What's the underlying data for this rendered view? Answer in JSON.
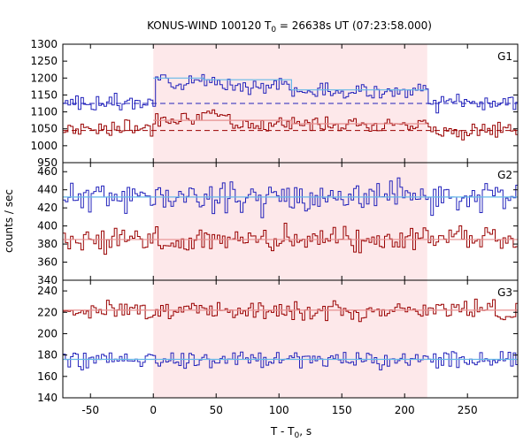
{
  "chart_data": {
    "type": "line",
    "title": "KONUS-WIND 100120 T",
    "title_sub": "0",
    "title_rest": " = 26638s UT (07:23:58.000)",
    "xlabel": "T - T",
    "xlabel_sub": "0",
    "xlabel_rest": ", s",
    "ylabel": "counts / sec",
    "xlim": [
      -72,
      290
    ],
    "xticks": [
      -50,
      0,
      50,
      100,
      150,
      200,
      250
    ],
    "xtick_labels": [
      "-50",
      "0",
      "50",
      "100",
      "150",
      "200",
      "250"
    ],
    "highlight_interval": [
      0,
      218
    ],
    "colors": {
      "blue": "#2222bb",
      "red": "#990000",
      "cyan": "#66b8e8",
      "pink": "#e79090",
      "shade": "#fde8ea"
    },
    "panels": [
      {
        "label": "G1",
        "ylim": [
          950,
          1300
        ],
        "yticks": [
          950,
          1000,
          1050,
          1100,
          1150,
          1200,
          1250,
          1300
        ],
        "ytick_labels": [
          "950",
          "1000",
          "1050",
          "1100",
          "1150",
          "1200",
          "1250",
          "1300"
        ],
        "series": [
          {
            "color": "blue",
            "background": 1125,
            "background_style": "dashed",
            "fit": [
              {
                "x": [
                  0,
                  40,
                  110,
                  218
                ],
                "y": [
                  1200,
                  1195,
                  1165,
                  1150
                ]
              }
            ],
            "noise": 16,
            "seed": 3,
            "segments": [
              [
                -72,
                0,
                1125
              ],
              [
                0,
                40,
                1195
              ],
              [
                40,
                110,
                1180
              ],
              [
                110,
                218,
                1160
              ],
              [
                218,
                290,
                1125
              ]
            ]
          },
          {
            "color": "red",
            "background": 1045,
            "background_style": "dashed",
            "fit": [
              {
                "x": [
                  0,
                  40,
                  110,
                  218
                ],
                "y": [
                  1075,
                  1075,
                  1065,
                  1055
                ]
              }
            ],
            "noise": 16,
            "seed": 7,
            "segments": [
              [
                -72,
                0,
                1052
              ],
              [
                0,
                60,
                1085
              ],
              [
                60,
                218,
                1065
              ],
              [
                218,
                290,
                1045
              ]
            ]
          }
        ]
      },
      {
        "label": "G2",
        "ylim": [
          340,
          470
        ],
        "yticks": [
          340,
          360,
          380,
          400,
          420,
          440,
          460
        ],
        "ytick_labels": [
          "340",
          "360",
          "380",
          "400",
          "420",
          "440",
          "460"
        ],
        "series": [
          {
            "color": "blue",
            "background": 432,
            "background_style": "solid",
            "fit": [],
            "noise": 12,
            "seed": 11,
            "segments": [
              [
                -72,
                290,
                432
              ]
            ]
          },
          {
            "color": "red",
            "background": 385,
            "background_style": "solid",
            "fit": [],
            "noise": 10,
            "seed": 13,
            "segments": [
              [
                -72,
                290,
                385
              ]
            ]
          }
        ]
      },
      {
        "label": "G3",
        "ylim": [
          140,
          250
        ],
        "yticks": [
          140,
          160,
          180,
          200,
          220,
          240
        ],
        "ytick_labels": [
          "140",
          "160",
          "180",
          "200",
          "220",
          "240"
        ],
        "series": [
          {
            "color": "red",
            "background": 222,
            "background_style": "solid",
            "fit": [],
            "noise": 6,
            "seed": 17,
            "segments": [
              [
                -72,
                290,
                222
              ]
            ]
          },
          {
            "color": "blue",
            "background": 176,
            "background_style": "solid",
            "fit": [],
            "noise": 6,
            "seed": 19,
            "segments": [
              [
                -72,
                290,
                176
              ]
            ]
          }
        ]
      }
    ]
  }
}
